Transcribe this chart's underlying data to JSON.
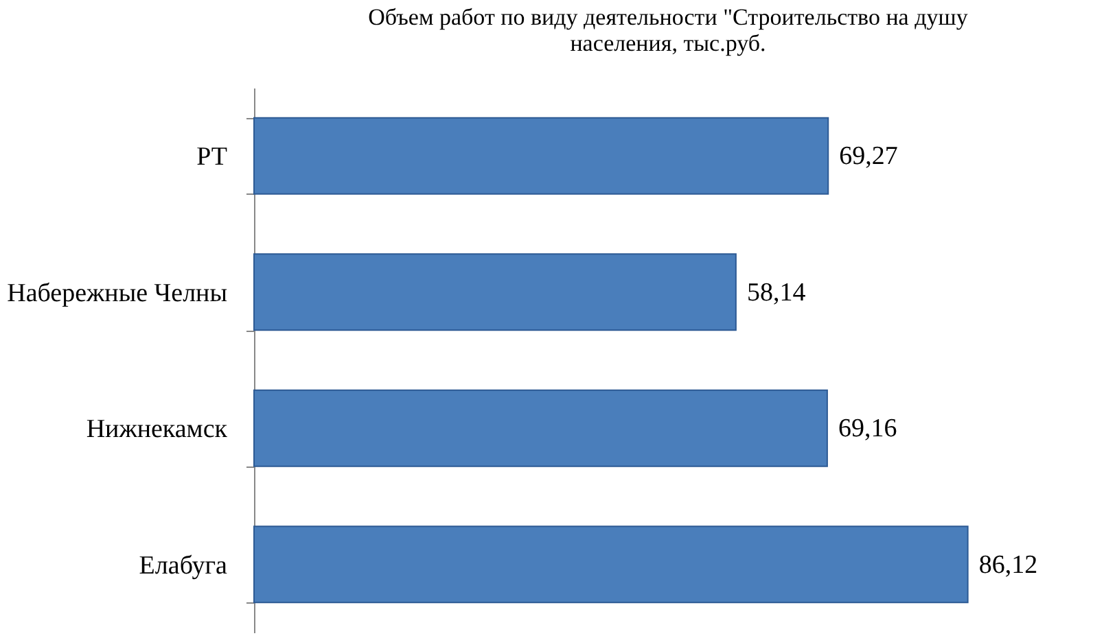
{
  "chart_data": {
    "type": "bar",
    "orientation": "horizontal",
    "title": "Объем работ по виду деятельности \"Строительство на душу населения, тыс.руб.",
    "categories": [
      "РТ",
      "Набережные Челны",
      "Нижнекамск",
      "Елабуга"
    ],
    "values": [
      69.27,
      58.14,
      69.16,
      86.12
    ],
    "value_labels": [
      "69,27",
      "58,14",
      "69,16",
      "86,12"
    ],
    "color": "#4a7ebb",
    "tick_labels": "y",
    "grid": false
  }
}
